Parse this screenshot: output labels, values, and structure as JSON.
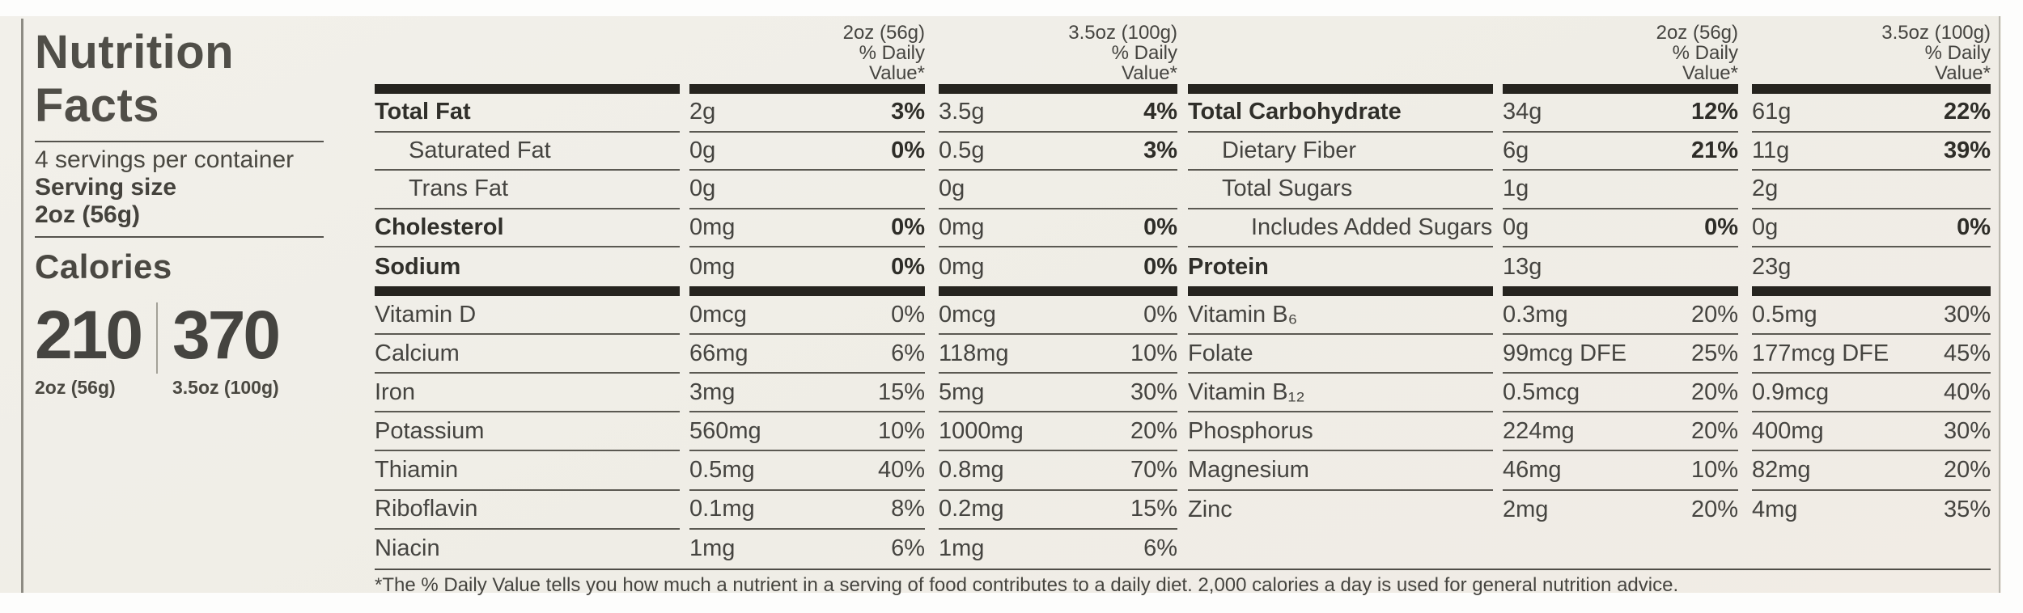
{
  "panel": {
    "title_line1": "Nutrition",
    "title_line2": "Facts",
    "servings_per_container": "4 servings per container",
    "serving_size_label": "Serving size",
    "serving_size_value": "2oz (56g)",
    "calories_label": "Calories",
    "calories": [
      {
        "value": "210",
        "serving": "2oz (56g)"
      },
      {
        "value": "370",
        "serving": "3.5oz (100g)"
      }
    ]
  },
  "columns": {
    "col1_header": [
      "2oz (56g)",
      "% Daily",
      "Value*"
    ],
    "col2_header": [
      "3.5oz (100g)",
      "% Daily",
      "Value*"
    ]
  },
  "sections": [
    {
      "name": "left",
      "rows_top": [
        {
          "label": "Total Fat",
          "bold": true,
          "indent": 0,
          "amt1": "2g",
          "pct1": "3%",
          "pct1_bold": true,
          "amt2": "3.5g",
          "pct2": "4%",
          "pct2_bold": true,
          "sep": true
        },
        {
          "label": "Saturated Fat",
          "bold": false,
          "indent": 1,
          "amt1": "0g",
          "pct1": "0%",
          "pct1_bold": true,
          "amt2": "0.5g",
          "pct2": "3%",
          "pct2_bold": true,
          "sep": true
        },
        {
          "label": "Trans Fat",
          "bold": false,
          "indent": 1,
          "amt1": "0g",
          "pct1": "",
          "pct1_bold": false,
          "amt2": "0g",
          "pct2": "",
          "pct2_bold": false,
          "sep": true
        },
        {
          "label": "Cholesterol",
          "bold": true,
          "indent": 0,
          "amt1": "0mg",
          "pct1": "0%",
          "pct1_bold": true,
          "amt2": "0mg",
          "pct2": "0%",
          "pct2_bold": true,
          "sep": true
        },
        {
          "label": "Sodium",
          "bold": true,
          "indent": 0,
          "amt1": "0mg",
          "pct1": "0%",
          "pct1_bold": true,
          "amt2": "0mg",
          "pct2": "0%",
          "pct2_bold": true,
          "sep": false
        }
      ],
      "rows_bottom": [
        {
          "label": "Vitamin D",
          "bold": false,
          "indent": 0,
          "amt1": "0mcg",
          "pct1": "0%",
          "pct1_bold": false,
          "amt2": "0mcg",
          "pct2": "0%",
          "pct2_bold": false,
          "sep": true
        },
        {
          "label": "Calcium",
          "bold": false,
          "indent": 0,
          "amt1": "66mg",
          "pct1": "6%",
          "pct1_bold": false,
          "amt2": "118mg",
          "pct2": "10%",
          "pct2_bold": false,
          "sep": true
        },
        {
          "label": "Iron",
          "bold": false,
          "indent": 0,
          "amt1": "3mg",
          "pct1": "15%",
          "pct1_bold": false,
          "amt2": "5mg",
          "pct2": "30%",
          "pct2_bold": false,
          "sep": true
        },
        {
          "label": "Potassium",
          "bold": false,
          "indent": 0,
          "amt1": "560mg",
          "pct1": "10%",
          "pct1_bold": false,
          "amt2": "1000mg",
          "pct2": "20%",
          "pct2_bold": false,
          "sep": true
        },
        {
          "label": "Thiamin",
          "bold": false,
          "indent": 0,
          "amt1": "0.5mg",
          "pct1": "40%",
          "pct1_bold": false,
          "amt2": "0.8mg",
          "pct2": "70%",
          "pct2_bold": false,
          "sep": true
        },
        {
          "label": "Riboflavin",
          "bold": false,
          "indent": 0,
          "amt1": "0.1mg",
          "pct1": "8%",
          "pct1_bold": false,
          "amt2": "0.2mg",
          "pct2": "15%",
          "pct2_bold": false,
          "sep": true
        },
        {
          "label": "Niacin",
          "bold": false,
          "indent": 0,
          "amt1": "1mg",
          "pct1": "6%",
          "pct1_bold": false,
          "amt2": "1mg",
          "pct2": "6%",
          "pct2_bold": false,
          "sep": false
        }
      ]
    },
    {
      "name": "right",
      "rows_top": [
        {
          "label": "Total Carbohydrate",
          "bold": true,
          "indent": 0,
          "amt1": "34g",
          "pct1": "12%",
          "pct1_bold": true,
          "amt2": "61g",
          "pct2": "22%",
          "pct2_bold": true,
          "sep": true
        },
        {
          "label": "Dietary Fiber",
          "bold": false,
          "indent": 1,
          "amt1": "6g",
          "pct1": "21%",
          "pct1_bold": true,
          "amt2": "11g",
          "pct2": "39%",
          "pct2_bold": true,
          "sep": true
        },
        {
          "label": "Total Sugars",
          "bold": false,
          "indent": 1,
          "amt1": "1g",
          "pct1": "",
          "pct1_bold": false,
          "amt2": "2g",
          "pct2": "",
          "pct2_bold": false,
          "sep": true
        },
        {
          "label": "Includes Added Sugars",
          "bold": false,
          "indent": 2,
          "amt1": "0g",
          "pct1": "0%",
          "pct1_bold": true,
          "amt2": "0g",
          "pct2": "0%",
          "pct2_bold": true,
          "sep": true
        },
        {
          "label": "Protein",
          "bold": true,
          "indent": 0,
          "amt1": "13g",
          "pct1": "",
          "pct1_bold": false,
          "amt2": "23g",
          "pct2": "",
          "pct2_bold": false,
          "sep": false
        }
      ],
      "rows_bottom": [
        {
          "label": "Vitamin B₆",
          "bold": false,
          "indent": 0,
          "amt1": "0.3mg",
          "pct1": "20%",
          "pct1_bold": false,
          "amt2": "0.5mg",
          "pct2": "30%",
          "pct2_bold": false,
          "sep": true
        },
        {
          "label": "Folate",
          "bold": false,
          "indent": 0,
          "amt1": "99mcg DFE",
          "pct1": "25%",
          "pct1_bold": false,
          "amt2": "177mcg DFE",
          "pct2": "45%",
          "pct2_bold": false,
          "sep": true
        },
        {
          "label": "Vitamin B₁₂",
          "bold": false,
          "indent": 0,
          "amt1": "0.5mcg",
          "pct1": "20%",
          "pct1_bold": false,
          "amt2": "0.9mcg",
          "pct2": "40%",
          "pct2_bold": false,
          "sep": true
        },
        {
          "label": "Phosphorus",
          "bold": false,
          "indent": 0,
          "amt1": "224mg",
          "pct1": "20%",
          "pct1_bold": false,
          "amt2": "400mg",
          "pct2": "30%",
          "pct2_bold": false,
          "sep": true
        },
        {
          "label": "Magnesium",
          "bold": false,
          "indent": 0,
          "amt1": "46mg",
          "pct1": "10%",
          "pct1_bold": false,
          "amt2": "82mg",
          "pct2": "20%",
          "pct2_bold": false,
          "sep": true
        },
        {
          "label": "Zinc",
          "bold": false,
          "indent": 0,
          "amt1": "2mg",
          "pct1": "20%",
          "pct1_bold": false,
          "amt2": "4mg",
          "pct2": "35%",
          "pct2_bold": false,
          "sep": false
        },
        {
          "label": "",
          "bold": false,
          "indent": 0,
          "amt1": "",
          "pct1": "",
          "pct1_bold": false,
          "amt2": "",
          "pct2": "",
          "pct2_bold": false,
          "sep": false
        }
      ]
    }
  ],
  "footnote": "*The % Daily Value tells you how much a nutrient in a serving of food contributes to a daily diet. 2,000 calories a day is used for general nutrition advice.",
  "colors": {
    "card_background": "#f0eee6",
    "ink": "#454440",
    "ink_bold": "#2e2d28",
    "thick_bar": "#26241f",
    "thin_rule": "#5b5952"
  }
}
